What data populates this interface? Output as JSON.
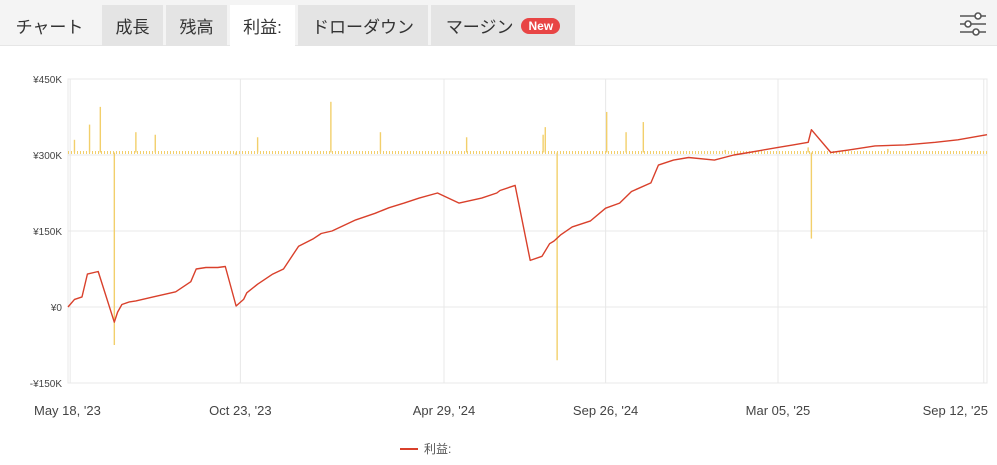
{
  "tabs": [
    {
      "label": "チャート",
      "state": "plain"
    },
    {
      "label": "成長",
      "state": "normal"
    },
    {
      "label": "残高",
      "state": "normal"
    },
    {
      "label": "利益:",
      "state": "active"
    },
    {
      "label": "ドローダウン",
      "state": "normal"
    },
    {
      "label": "マージン",
      "state": "normal",
      "badge": "New"
    }
  ],
  "settings_icon": "sliders-icon",
  "colors": {
    "profit_line": "#d9402b",
    "volume_bars": "#f2cf6b",
    "grid": "#e8e8e8"
  },
  "chart_data": {
    "type": "line",
    "title": "",
    "xlabel": "",
    "ylabel": "",
    "y_tick_labels": [
      "¥450K",
      "¥300K",
      "¥150K",
      "¥0",
      "-¥150K"
    ],
    "y_ticks": [
      450,
      300,
      150,
      0,
      -150
    ],
    "ylim": [
      -150,
      450
    ],
    "x_tick_labels": [
      "May 18, '23",
      "Oct 23, '23",
      "Apr 29, '24",
      "Sep 26, '24",
      "Mar 05, '25",
      "Sep 12, '25"
    ],
    "x_ticks": [
      "2023-05-18",
      "2023-10-23",
      "2024-04-29",
      "2024-09-26",
      "2025-03-05",
      "2025-09-12"
    ],
    "xlim": [
      "2023-05-16",
      "2025-09-15"
    ],
    "grid": true,
    "legend_position": "bottom-center",
    "series": [
      {
        "name": "利益:",
        "kind": "line",
        "x": [
          "2023-05-16",
          "2023-05-22",
          "2023-05-29",
          "2023-06-03",
          "2023-06-13",
          "2023-06-28",
          "2023-07-01",
          "2023-07-05",
          "2023-07-12",
          "2023-07-18",
          "2023-08-03",
          "2023-08-24",
          "2023-09-07",
          "2023-09-12",
          "2023-09-21",
          "2023-10-02",
          "2023-10-09",
          "2023-10-19",
          "2023-10-26",
          "2023-10-29",
          "2023-11-08",
          "2023-11-22",
          "2023-12-02",
          "2023-12-16",
          "2023-12-30",
          "2024-01-06",
          "2024-01-16",
          "2024-02-07",
          "2024-02-25",
          "2024-03-09",
          "2024-03-23",
          "2024-04-06",
          "2024-04-23",
          "2024-05-13",
          "2024-06-03",
          "2024-06-17",
          "2024-06-20",
          "2024-07-04",
          "2024-07-18",
          "2024-07-29",
          "2024-08-05",
          "2024-08-09",
          "2024-08-15",
          "2024-08-26",
          "2024-09-12",
          "2024-09-26",
          "2024-10-09",
          "2024-10-20",
          "2024-11-07",
          "2024-11-14",
          "2024-11-28",
          "2024-12-12",
          "2025-01-05",
          "2025-01-23",
          "2025-02-06",
          "2025-03-05",
          "2025-03-19",
          "2025-04-02",
          "2025-04-05",
          "2025-04-23",
          "2025-05-10",
          "2025-06-03",
          "2025-07-01",
          "2025-07-29",
          "2025-08-19",
          "2025-09-15"
        ],
        "values": [
          0,
          15,
          20,
          65,
          70,
          -30,
          -10,
          5,
          10,
          12,
          20,
          30,
          50,
          75,
          78,
          78,
          80,
          2,
          15,
          28,
          45,
          65,
          75,
          120,
          135,
          145,
          150,
          172,
          185,
          196,
          205,
          215,
          225,
          205,
          215,
          225,
          230,
          240,
          92,
          100,
          125,
          130,
          142,
          158,
          170,
          195,
          205,
          228,
          245,
          280,
          290,
          295,
          290,
          300,
          305,
          315,
          320,
          325,
          350,
          305,
          310,
          318,
          320,
          325,
          330,
          340
        ]
      },
      {
        "name": "",
        "kind": "bars",
        "baseline": 305,
        "x": [
          "2023-05-22",
          "2023-06-05",
          "2023-06-15",
          "2023-06-28",
          "2023-07-18",
          "2023-08-05",
          "2023-10-19",
          "2023-11-08",
          "2024-01-15",
          "2024-03-01",
          "2024-05-20",
          "2024-07-30",
          "2024-08-01",
          "2024-08-12",
          "2024-09-27",
          "2024-10-15",
          "2024-10-31",
          "2025-01-15",
          "2025-04-02",
          "2025-04-05",
          "2025-06-15",
          "2025-09-01"
        ],
        "values": [
          330,
          360,
          395,
          -75,
          345,
          340,
          300,
          335,
          405,
          345,
          335,
          340,
          355,
          -105,
          385,
          345,
          365,
          310,
          315,
          135,
          312,
          308
        ]
      }
    ]
  },
  "legend": {
    "label": "利益:"
  }
}
